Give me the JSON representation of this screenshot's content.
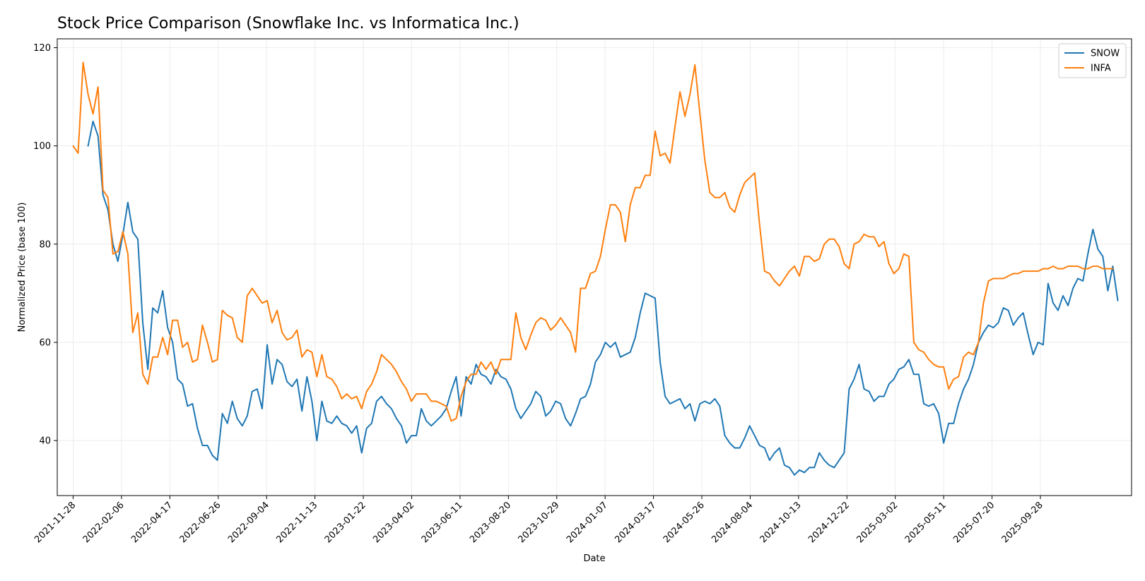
{
  "chart_data": {
    "type": "line",
    "title": "Stock Price Comparison (Snowflake Inc. vs Informatica Inc.)",
    "xlabel": "Date",
    "ylabel": "Normalized Price (base 100)",
    "x_start": "2021-11-28",
    "x_end": "2026-01-18",
    "xlim": [
      "2021-11-05",
      "2026-02-07"
    ],
    "ylim": [
      28.8,
      121.8
    ],
    "y_ticks": [
      40,
      60,
      80,
      100,
      120
    ],
    "x_ticks": [
      "2021-11-28",
      "2022-02-06",
      "2022-04-17",
      "2022-06-26",
      "2022-09-04",
      "2022-11-13",
      "2023-01-22",
      "2023-04-02",
      "2023-06-11",
      "2023-08-20",
      "2023-10-29",
      "2024-01-07",
      "2024-03-17",
      "2024-05-26",
      "2024-08-04",
      "2024-10-13",
      "2024-12-22",
      "2025-03-02",
      "2025-05-11",
      "2025-07-20",
      "2025-09-28"
    ],
    "grid": true,
    "legend_position": "top-right",
    "series": [
      {
        "name": "SNOW",
        "color": "#1f77b4",
        "start_index": 3,
        "values": [
          100.0,
          105.0,
          102.0,
          90.0,
          87.0,
          80.0,
          76.5,
          82.0,
          88.5,
          82.5,
          81.0,
          64.0,
          54.5,
          67.0,
          66.0,
          70.5,
          63.0,
          60.0,
          52.5,
          51.5,
          47.0,
          47.5,
          42.5,
          39.0,
          39.0,
          37.0,
          36.0,
          45.5,
          43.5,
          48.0,
          44.5,
          43.0,
          45.0,
          50.0,
          50.5,
          46.5,
          59.5,
          51.5,
          56.5,
          55.5,
          52.0,
          51.0,
          52.5,
          46.0,
          53.0,
          48.0,
          40.0,
          48.0,
          44.0,
          43.5,
          45.0,
          43.5,
          43.0,
          41.5,
          43.0,
          37.5,
          42.5,
          43.5,
          48.0,
          49.0,
          47.5,
          46.5,
          44.5,
          43.0,
          39.5,
          41.0,
          41.0,
          46.5,
          44.0,
          43.0,
          44.0,
          45.0,
          46.5,
          50.0,
          53.0,
          45.0,
          53.0,
          51.5,
          55.5,
          53.5,
          53.0,
          51.5,
          54.5,
          53.0,
          52.5,
          50.5,
          46.5,
          44.5,
          46.0,
          47.5,
          50.0,
          49.0,
          45.0,
          46.0,
          48.0,
          47.5,
          44.5,
          43.0,
          45.5,
          48.5,
          49.0,
          51.5,
          56.0,
          57.5,
          60.0,
          59.0,
          60.0,
          57.0,
          57.5,
          58.0,
          61.0,
          66.0,
          70.0,
          69.5,
          69.0,
          56.0,
          49.0,
          47.5,
          48.0,
          48.5,
          46.5,
          47.5,
          44.0,
          47.5,
          48.0,
          47.5,
          48.5,
          47.0,
          41.0,
          39.5,
          38.5,
          38.5,
          40.5,
          43.0,
          41.0,
          39.0,
          38.5,
          36.0,
          37.5,
          38.5,
          35.0,
          34.5,
          33.0,
          34.0,
          33.5,
          34.5,
          34.5,
          37.5,
          36.0,
          35.0,
          34.5,
          36.0,
          37.5,
          50.5,
          52.5,
          55.5,
          50.5,
          50.0,
          48.0,
          49.0,
          49.0,
          51.5,
          52.5,
          54.5,
          55.0,
          56.5,
          53.5,
          53.5,
          47.5,
          47.0,
          47.5,
          45.5,
          39.5,
          43.5,
          43.5,
          47.5,
          50.5,
          52.5,
          55.5,
          60.0,
          62.0,
          63.5,
          63.0,
          64.0,
          67.0,
          66.5,
          63.5,
          65.0,
          66.0,
          61.5,
          57.5,
          60.0,
          59.5,
          72.0,
          68.0,
          66.5,
          69.5,
          67.5,
          71.0,
          73.0,
          72.5,
          78.0,
          83.0,
          79.0,
          77.5,
          70.5,
          75.5,
          68.5
        ]
      },
      {
        "name": "INFA",
        "color": "#ff7f0e",
        "start_index": 0,
        "values": [
          100.0,
          98.5,
          117.0,
          110.5,
          106.5,
          112.0,
          91.0,
          89.5,
          78.0,
          78.5,
          82.5,
          78.0,
          62.0,
          66.0,
          53.5,
          51.5,
          57.0,
          57.0,
          61.0,
          57.5,
          64.5,
          64.5,
          59.0,
          60.0,
          56.0,
          56.5,
          63.5,
          60.0,
          56.0,
          56.5,
          66.5,
          65.5,
          65.0,
          61.0,
          60.0,
          69.5,
          71.0,
          69.5,
          68.0,
          68.5,
          64.0,
          66.5,
          62.0,
          60.5,
          61.0,
          62.5,
          57.0,
          58.5,
          58.0,
          53.0,
          57.5,
          53.0,
          52.5,
          51.0,
          48.5,
          49.5,
          48.5,
          49.0,
          46.5,
          50.0,
          51.5,
          54.0,
          57.5,
          56.5,
          55.5,
          54.0,
          52.0,
          50.5,
          48.0,
          49.5,
          49.5,
          49.5,
          48.0,
          48.0,
          47.5,
          47.0,
          44.0,
          44.5,
          49.0,
          52.0,
          53.5,
          53.5,
          56.0,
          54.5,
          56.0,
          53.5,
          56.5,
          56.5,
          56.5,
          66.0,
          61.0,
          58.5,
          61.5,
          64.0,
          65.0,
          64.5,
          62.5,
          63.5,
          65.0,
          63.5,
          62.0,
          58.0,
          71.0,
          71.0,
          74.0,
          74.5,
          77.5,
          83.0,
          88.0,
          88.0,
          86.5,
          80.5,
          88.0,
          91.5,
          91.5,
          94.0,
          94.0,
          103.0,
          98.0,
          98.5,
          96.5,
          104.0,
          111.0,
          106.0,
          110.5,
          116.5,
          106.5,
          97.0,
          90.5,
          89.5,
          89.5,
          90.5,
          87.5,
          86.5,
          90.0,
          92.5,
          93.5,
          94.5,
          84.0,
          74.5,
          74.0,
          72.5,
          71.5,
          73.0,
          74.5,
          75.5,
          73.5,
          77.5,
          77.5,
          76.5,
          77.0,
          80.0,
          81.0,
          81.0,
          79.5,
          76.0,
          75.0,
          80.0,
          80.5,
          82.0,
          81.5,
          81.5,
          79.5,
          80.5,
          76.0,
          74.0,
          75.0,
          78.0,
          77.5,
          60.0,
          58.5,
          58.0,
          56.5,
          55.5,
          55.0,
          55.0,
          50.5,
          52.5,
          53.0,
          57.0,
          58.0,
          57.5,
          60.0,
          68.0,
          72.5,
          73.0,
          73.0,
          73.0,
          73.5,
          74.0,
          74.0,
          74.5,
          74.5,
          74.5,
          74.5,
          75.0,
          75.0,
          75.5,
          75.0,
          75.0,
          75.5,
          75.5,
          75.5,
          75.0,
          75.0,
          75.5,
          75.5,
          75.0,
          75.0,
          75.0
        ]
      }
    ]
  }
}
